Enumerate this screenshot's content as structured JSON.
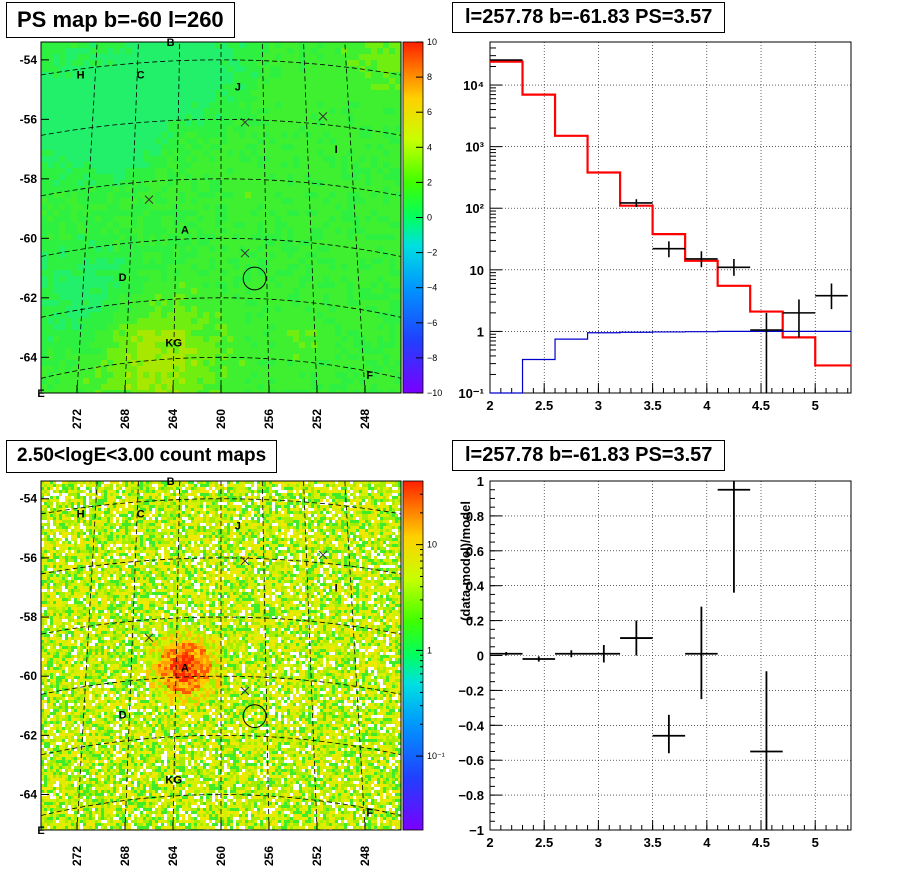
{
  "panels": {
    "ps_map": {
      "title": "PS map b=-60 l=260"
    },
    "spectrum": {
      "title": "l=257.78 b=-61.83 PS=3.57"
    },
    "count_map": {
      "title": "2.50<logE<3.00 count maps"
    },
    "residual": {
      "title": "l=257.78 b=-61.83 PS=3.57"
    }
  },
  "chart_data": [
    {
      "id": "ps_map",
      "type": "heatmap",
      "title": "PS map b=-60 l=260",
      "xlabel": "",
      "ylabel": "",
      "xlim": [
        275,
        245
      ],
      "ylim": [
        -65.2,
        -53.4
      ],
      "x_ticks": [
        272,
        268,
        264,
        260,
        256,
        252,
        248
      ],
      "y_ticks": [
        -54,
        -56,
        -58,
        -60,
        -62,
        -64
      ],
      "colorbar": {
        "min": -10,
        "max": 10,
        "ticks": [
          10,
          8,
          6,
          4,
          2,
          0,
          -2,
          -4,
          -6,
          -8,
          -10
        ]
      },
      "grid": true,
      "source_labels": [
        {
          "name": "B",
          "x": 264.2,
          "y": -53.4
        },
        {
          "name": "H",
          "x": 271.7,
          "y": -54.5
        },
        {
          "name": "C",
          "x": 266.7,
          "y": -54.5
        },
        {
          "name": "J",
          "x": 258.6,
          "y": -54.9
        },
        {
          "name": "I",
          "x": 250.4,
          "y": -57.0
        },
        {
          "name": "A",
          "x": 263.0,
          "y": -59.7
        },
        {
          "name": "D",
          "x": 268.2,
          "y": -61.3
        },
        {
          "name": "K",
          "x": 264.3,
          "y": -63.5
        },
        {
          "name": "G",
          "x": 263.6,
          "y": -63.5
        },
        {
          "name": "F",
          "x": 247.6,
          "y": -64.6
        },
        {
          "name": "E",
          "x": 275.0,
          "y": -65.2
        }
      ],
      "markers": [
        {
          "type": "x",
          "x": 258.0,
          "y": -56.1
        },
        {
          "type": "x",
          "x": 251.5,
          "y": -55.9
        },
        {
          "type": "x",
          "x": 266.0,
          "y": -58.7
        },
        {
          "type": "x",
          "x": 258.0,
          "y": -60.5
        }
      ],
      "circle": {
        "x": 257.2,
        "y": -61.35,
        "radius_deg": 1.0
      }
    },
    {
      "id": "spectrum",
      "type": "line",
      "title": "l=257.78 b=-61.83 PS=3.57",
      "xlabel": "",
      "ylabel": "",
      "xlim": [
        2,
        5.33
      ],
      "ylim": [
        0.1,
        50000
      ],
      "yscale": "log",
      "x_ticks": [
        2,
        2.5,
        3,
        3.5,
        4,
        4.5,
        5
      ],
      "y_ticks": [
        0.1,
        1,
        10,
        100,
        1000,
        10000
      ],
      "y_tick_labels": [
        "10⁻¹",
        "1",
        "10",
        "10²",
        "10³",
        "10⁴"
      ],
      "grid": true,
      "series": [
        {
          "color": "#ff0000",
          "style": "step",
          "edges": [
            2.0,
            2.3,
            2.6,
            2.9,
            3.2,
            3.5,
            3.8,
            4.1,
            4.4,
            4.7,
            5.0,
            5.33
          ],
          "values": [
            24000,
            7000,
            1500,
            380,
            110,
            38,
            14,
            5.5,
            2.1,
            0.8,
            0.28
          ]
        },
        {
          "color": "#0000cc",
          "style": "step",
          "edges": [
            2.0,
            2.3,
            2.6,
            2.9,
            3.2,
            3.5,
            3.8,
            4.1,
            4.4,
            4.7,
            5.0,
            5.33
          ],
          "values": [
            0.001,
            0.35,
            0.75,
            0.95,
            0.97,
            0.98,
            0.99,
            1.0,
            1.0,
            1.0,
            1.0
          ]
        },
        {
          "color": "#000000",
          "style": "errorbar",
          "points": [
            {
              "x": 2.15,
              "xerr": 0.15,
              "y": 25500,
              "ylo": 25000,
              "yhi": 26000
            },
            {
              "x": 3.35,
              "xerr": 0.15,
              "y": 122,
              "ylo": 105,
              "yhi": 140
            },
            {
              "x": 3.65,
              "xerr": 0.15,
              "y": 22,
              "ylo": 16,
              "yhi": 29
            },
            {
              "x": 3.95,
              "xerr": 0.15,
              "y": 15,
              "ylo": 11,
              "yhi": 20
            },
            {
              "x": 4.25,
              "xerr": 0.15,
              "y": 11,
              "ylo": 8,
              "yhi": 15
            },
            {
              "x": 4.55,
              "xerr": 0.15,
              "y": 1.05,
              "ylo": 0.1,
              "yhi": 2.0
            },
            {
              "x": 4.85,
              "xerr": 0.15,
              "y": 2.0,
              "ylo": 0.8,
              "yhi": 3.3
            },
            {
              "x": 5.15,
              "xerr": 0.15,
              "y": 3.8,
              "ylo": 2.3,
              "yhi": 6.0
            }
          ]
        }
      ]
    },
    {
      "id": "count_map",
      "type": "heatmap",
      "title": "2.50<logE<3.00 count maps",
      "xlabel": "",
      "ylabel": "",
      "xlim": [
        275,
        245
      ],
      "ylim": [
        -65.2,
        -53.4
      ],
      "x_ticks": [
        272,
        268,
        264,
        260,
        256,
        252,
        248
      ],
      "y_ticks": [
        -54,
        -56,
        -58,
        -60,
        -62,
        -64
      ],
      "colorbar": {
        "scale": "log",
        "min": 0.02,
        "max": 40,
        "ticks": [
          10,
          1
        ],
        "tick_labels": [
          "10",
          "1",
          "10⁻¹"
        ]
      },
      "grid": true,
      "hotspot": {
        "x": 263.0,
        "y": -59.7,
        "peak": 12
      },
      "source_labels": [
        {
          "name": "B",
          "x": 264.2,
          "y": -53.4
        },
        {
          "name": "H",
          "x": 271.7,
          "y": -54.5
        },
        {
          "name": "C",
          "x": 266.7,
          "y": -54.5
        },
        {
          "name": "J",
          "x": 258.6,
          "y": -54.9
        },
        {
          "name": "I",
          "x": 250.4,
          "y": -57.0
        },
        {
          "name": "A",
          "x": 263.0,
          "y": -59.7
        },
        {
          "name": "D",
          "x": 268.2,
          "y": -61.3
        },
        {
          "name": "K",
          "x": 264.3,
          "y": -63.5
        },
        {
          "name": "G",
          "x": 263.6,
          "y": -63.5
        },
        {
          "name": "F",
          "x": 247.6,
          "y": -64.6
        },
        {
          "name": "E",
          "x": 275.0,
          "y": -65.2
        }
      ],
      "markers": [
        {
          "type": "x",
          "x": 258.0,
          "y": -56.1
        },
        {
          "type": "x",
          "x": 251.5,
          "y": -55.9
        },
        {
          "type": "x",
          "x": 266.0,
          "y": -58.7
        },
        {
          "type": "x",
          "x": 258.0,
          "y": -60.5
        }
      ],
      "circle": {
        "x": 257.2,
        "y": -61.35,
        "radius_deg": 1.0
      }
    },
    {
      "id": "residual",
      "type": "scatter",
      "title": "l=257.78 b=-61.83 PS=3.57",
      "xlabel": "",
      "ylabel": "(data-model)/model",
      "xlim": [
        2,
        5.33
      ],
      "ylim": [
        -1,
        1
      ],
      "x_ticks": [
        2,
        2.5,
        3,
        3.5,
        4,
        4.5,
        5
      ],
      "y_ticks": [
        -1,
        -0.8,
        -0.6,
        -0.4,
        -0.2,
        0,
        0.2,
        0.4,
        0.6,
        0.8,
        1
      ],
      "grid": true,
      "series": [
        {
          "color": "#000000",
          "style": "errorbar",
          "points": [
            {
              "x": 2.15,
              "xerr": 0.15,
              "y": 0.01,
              "ylo": 0.0,
              "yhi": 0.02
            },
            {
              "x": 2.45,
              "xerr": 0.15,
              "y": -0.02,
              "ylo": -0.035,
              "yhi": -0.005
            },
            {
              "x": 2.75,
              "xerr": 0.15,
              "y": 0.01,
              "ylo": -0.01,
              "yhi": 0.03
            },
            {
              "x": 3.05,
              "xerr": 0.15,
              "y": 0.01,
              "ylo": -0.04,
              "yhi": 0.06
            },
            {
              "x": 3.35,
              "xerr": 0.15,
              "y": 0.1,
              "ylo": -0.0,
              "yhi": 0.2
            },
            {
              "x": 3.65,
              "xerr": 0.15,
              "y": -0.46,
              "ylo": -0.56,
              "yhi": -0.34
            },
            {
              "x": 3.95,
              "xerr": 0.15,
              "y": 0.01,
              "ylo": -0.25,
              "yhi": 0.28
            },
            {
              "x": 4.25,
              "xerr": 0.15,
              "y": 0.95,
              "ylo": 0.36,
              "yhi": 1.0
            },
            {
              "x": 4.55,
              "xerr": 0.15,
              "y": -0.55,
              "ylo": -1.0,
              "yhi": -0.09
            }
          ]
        }
      ]
    }
  ]
}
